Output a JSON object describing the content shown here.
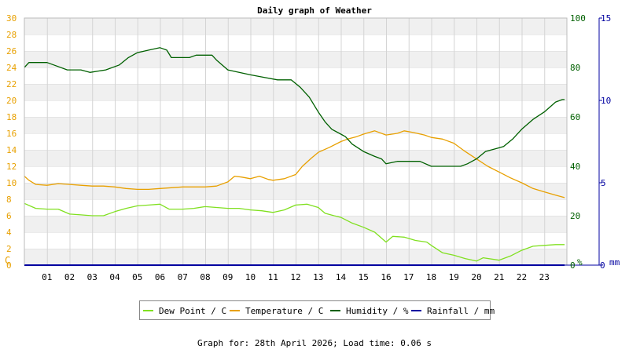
{
  "chart_data": {
    "type": "line",
    "title": "Daily graph of Weather",
    "footer": "Graph for: 28th April 2026; Load time: 0.06 s",
    "x_ticks": [
      "01",
      "02",
      "03",
      "04",
      "05",
      "06",
      "07",
      "08",
      "09",
      "10",
      "11",
      "12",
      "13",
      "14",
      "15",
      "16",
      "17",
      "18",
      "19",
      "20",
      "21",
      "22",
      "23"
    ],
    "xlim": [
      0,
      24
    ],
    "axes": {
      "left": {
        "unit": "C",
        "ylim": [
          0,
          30
        ],
        "ticks": [
          "0",
          "2",
          "4",
          "6",
          "8",
          "10",
          "12",
          "14",
          "16",
          "18",
          "20",
          "22",
          "24",
          "26",
          "28",
          "30"
        ],
        "color": "#e8a000"
      },
      "humidity": {
        "unit": "%",
        "ylim": [
          0,
          100
        ],
        "ticks": [
          "0",
          "20",
          "40",
          "60",
          "80",
          "100"
        ],
        "color": "#006000"
      },
      "rain": {
        "unit": "mm",
        "ylim": [
          0,
          15
        ],
        "ticks": [
          "0",
          "5",
          "10",
          "15"
        ],
        "color": "#0000a0"
      }
    },
    "grid": true,
    "legend_position": "bottom",
    "series": [
      {
        "name": "Dew Point / C",
        "axis": "left",
        "color": "#80e020",
        "points": [
          [
            0,
            7.5
          ],
          [
            0.5,
            6.9
          ],
          [
            1,
            6.8
          ],
          [
            1.5,
            6.8
          ],
          [
            2,
            6.2
          ],
          [
            2.5,
            6.1
          ],
          [
            3,
            6.0
          ],
          [
            3.5,
            6.0
          ],
          [
            4,
            6.5
          ],
          [
            4.5,
            6.9
          ],
          [
            5,
            7.2
          ],
          [
            5.5,
            7.3
          ],
          [
            6,
            7.4
          ],
          [
            6.4,
            6.8
          ],
          [
            7,
            6.8
          ],
          [
            7.5,
            6.9
          ],
          [
            8,
            7.1
          ],
          [
            8.5,
            7.0
          ],
          [
            9,
            6.9
          ],
          [
            9.5,
            6.9
          ],
          [
            10,
            6.7
          ],
          [
            10.5,
            6.6
          ],
          [
            11,
            6.4
          ],
          [
            11.5,
            6.7
          ],
          [
            12,
            7.3
          ],
          [
            12.5,
            7.4
          ],
          [
            13,
            7.0
          ],
          [
            13.3,
            6.3
          ],
          [
            13.7,
            6.0
          ],
          [
            14,
            5.8
          ],
          [
            14.5,
            5.1
          ],
          [
            15,
            4.6
          ],
          [
            15.5,
            4.0
          ],
          [
            16,
            2.8
          ],
          [
            16.3,
            3.5
          ],
          [
            16.8,
            3.4
          ],
          [
            17.3,
            3.0
          ],
          [
            17.8,
            2.8
          ],
          [
            18,
            2.4
          ],
          [
            18.5,
            1.5
          ],
          [
            19,
            1.2
          ],
          [
            19.5,
            0.8
          ],
          [
            20,
            0.5
          ],
          [
            20.3,
            0.9
          ],
          [
            21,
            0.6
          ],
          [
            21.5,
            1.1
          ],
          [
            22,
            1.8
          ],
          [
            22.5,
            2.3
          ],
          [
            23,
            2.4
          ],
          [
            23.5,
            2.5
          ],
          [
            23.9,
            2.5
          ]
        ]
      },
      {
        "name": "Temperature / C",
        "axis": "left",
        "color": "#e8a000",
        "points": [
          [
            0,
            10.8
          ],
          [
            0.2,
            10.3
          ],
          [
            0.5,
            9.8
          ],
          [
            1,
            9.7
          ],
          [
            1.5,
            9.9
          ],
          [
            2,
            9.8
          ],
          [
            2.5,
            9.7
          ],
          [
            3,
            9.6
          ],
          [
            3.5,
            9.6
          ],
          [
            4,
            9.5
          ],
          [
            4.5,
            9.3
          ],
          [
            5,
            9.2
          ],
          [
            5.5,
            9.2
          ],
          [
            6,
            9.3
          ],
          [
            6.5,
            9.4
          ],
          [
            7,
            9.5
          ],
          [
            7.5,
            9.5
          ],
          [
            8,
            9.5
          ],
          [
            8.5,
            9.6
          ],
          [
            9,
            10.1
          ],
          [
            9.3,
            10.8
          ],
          [
            9.6,
            10.7
          ],
          [
            10,
            10.5
          ],
          [
            10.4,
            10.8
          ],
          [
            10.8,
            10.4
          ],
          [
            11,
            10.3
          ],
          [
            11.5,
            10.5
          ],
          [
            12,
            11.0
          ],
          [
            12.3,
            12.0
          ],
          [
            12.7,
            13.0
          ],
          [
            13,
            13.7
          ],
          [
            13.5,
            14.3
          ],
          [
            14,
            15.0
          ],
          [
            14.3,
            15.3
          ],
          [
            14.7,
            15.6
          ],
          [
            15,
            15.9
          ],
          [
            15.5,
            16.3
          ],
          [
            16,
            15.8
          ],
          [
            16.5,
            16.0
          ],
          [
            16.8,
            16.3
          ],
          [
            17.2,
            16.1
          ],
          [
            17.7,
            15.8
          ],
          [
            18,
            15.5
          ],
          [
            18.5,
            15.3
          ],
          [
            19,
            14.8
          ],
          [
            19.5,
            13.8
          ],
          [
            20,
            12.9
          ],
          [
            20.5,
            12.0
          ],
          [
            21,
            11.3
          ],
          [
            21.5,
            10.6
          ],
          [
            22,
            10.0
          ],
          [
            22.5,
            9.3
          ],
          [
            23,
            8.9
          ],
          [
            23.5,
            8.5
          ],
          [
            23.9,
            8.2
          ]
        ]
      },
      {
        "name": "Humidity / %",
        "axis": "humidity",
        "color": "#006000",
        "points": [
          [
            0,
            80
          ],
          [
            0.2,
            82
          ],
          [
            1,
            82
          ],
          [
            1.3,
            81
          ],
          [
            1.9,
            79
          ],
          [
            2.5,
            79
          ],
          [
            2.9,
            78
          ],
          [
            3.6,
            79
          ],
          [
            4.2,
            81
          ],
          [
            4.6,
            84
          ],
          [
            5,
            86
          ],
          [
            5.5,
            87
          ],
          [
            6,
            88
          ],
          [
            6.3,
            87
          ],
          [
            6.5,
            84
          ],
          [
            7.3,
            84
          ],
          [
            7.6,
            85
          ],
          [
            8.3,
            85
          ],
          [
            8.5,
            83
          ],
          [
            9,
            79
          ],
          [
            9.5,
            78
          ],
          [
            10,
            77
          ],
          [
            10.6,
            76
          ],
          [
            11.2,
            75
          ],
          [
            11.8,
            75
          ],
          [
            12.2,
            72
          ],
          [
            12.6,
            68
          ],
          [
            13,
            62
          ],
          [
            13.3,
            58
          ],
          [
            13.6,
            55
          ],
          [
            14,
            53
          ],
          [
            14.2,
            52
          ],
          [
            14.5,
            49
          ],
          [
            15,
            46
          ],
          [
            15.5,
            44
          ],
          [
            15.8,
            43
          ],
          [
            16,
            41
          ],
          [
            16.5,
            42
          ],
          [
            17,
            42
          ],
          [
            17.5,
            42
          ],
          [
            18,
            40
          ],
          [
            18.5,
            40
          ],
          [
            19,
            40
          ],
          [
            19.3,
            40
          ],
          [
            19.6,
            41
          ],
          [
            20,
            43
          ],
          [
            20.4,
            46
          ],
          [
            20.8,
            47
          ],
          [
            21.2,
            48
          ],
          [
            21.6,
            51
          ],
          [
            22,
            55
          ],
          [
            22.5,
            59
          ],
          [
            23,
            62
          ],
          [
            23.5,
            66
          ],
          [
            23.8,
            67
          ],
          [
            23.9,
            67
          ]
        ]
      },
      {
        "name": "Rainfall / mm",
        "axis": "rain",
        "color": "#0000a0",
        "points": [
          [
            0,
            0
          ],
          [
            23.9,
            0
          ]
        ]
      }
    ]
  }
}
